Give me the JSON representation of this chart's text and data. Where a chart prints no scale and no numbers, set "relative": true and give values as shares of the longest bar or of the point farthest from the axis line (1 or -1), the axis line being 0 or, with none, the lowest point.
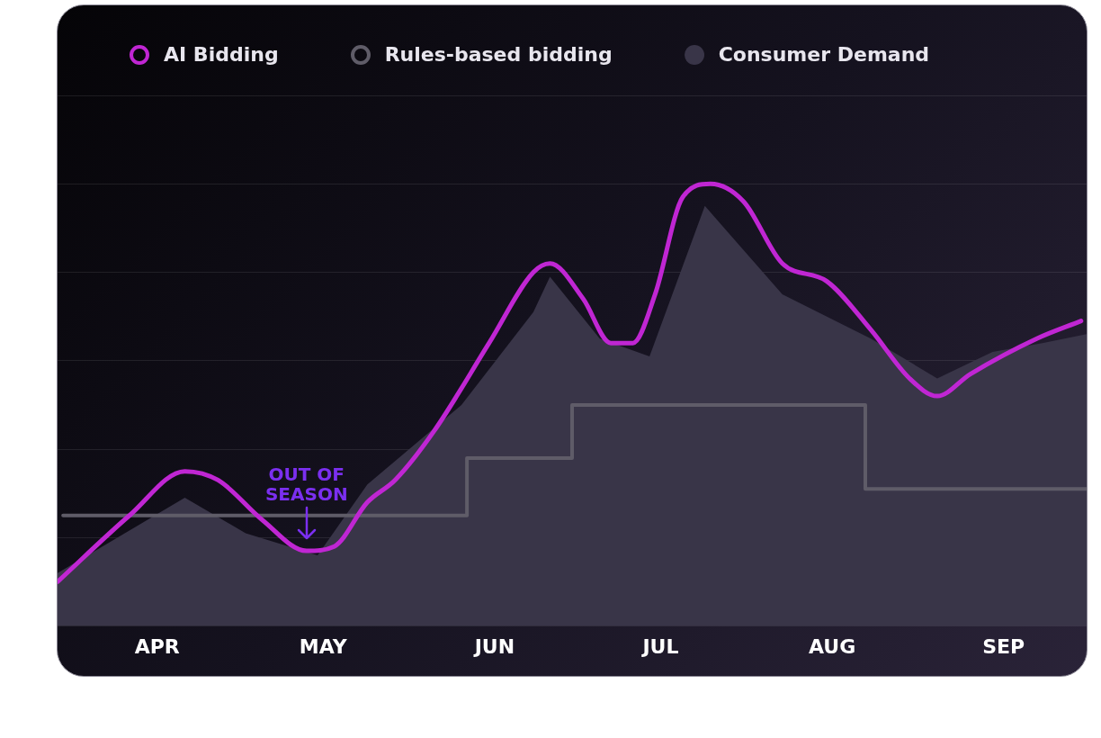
{
  "chart_data": {
    "type": "line",
    "relative": true,
    "grid": "y",
    "legend": "top",
    "marker": "none",
    "line_style": "solid",
    "xlim": [
      "--03-14",
      "--09-16"
    ],
    "xticks": [
      {
        "value": "--04-01",
        "label": "APR"
      },
      {
        "value": "--05-01",
        "label": "MAY"
      },
      {
        "value": "--06-01",
        "label": "JUN"
      },
      {
        "value": "--07-01",
        "label": "JUL"
      },
      {
        "value": "--08-01",
        "label": "AUG"
      },
      {
        "value": "--09-01",
        "label": "SEP"
      }
    ],
    "annotations": [
      {
        "text": "OUT OF SEASON",
        "x": "--04-28",
        "y": 0.17
      }
    ],
    "series": [
      {
        "name": "AI Bidding",
        "color": "#c026d3",
        "x": [
          "--03-14",
          "--03-27",
          "--04-06",
          "--04-12",
          "--04-20",
          "--04-28",
          "--05-03",
          "--05-09",
          "--05-14",
          "--05-21",
          "--05-31",
          "--06-08",
          "--06-11",
          "--06-17",
          "--06-22",
          "--06-26",
          "--06-30",
          "--07-05",
          "--07-10",
          "--07-16",
          "--07-23",
          "--07-31",
          "--08-08",
          "--08-15",
          "--08-20",
          "--08-26",
          "--09-07",
          "--09-15"
        ],
        "values": [
          0.1,
          0.25,
          0.35,
          0.33,
          0.24,
          0.17,
          0.18,
          0.28,
          0.33,
          0.44,
          0.64,
          0.8,
          0.82,
          0.74,
          0.64,
          0.64,
          0.75,
          0.97,
          1.0,
          0.96,
          0.82,
          0.78,
          0.67,
          0.56,
          0.52,
          0.57,
          0.65,
          0.69
        ]
      },
      {
        "name": "Rules-based bidding",
        "type": "step",
        "color": "#5f5c68",
        "x": [
          "--03-15",
          "--05-27",
          "--06-15",
          "--08-07",
          "--09-16"
        ],
        "values": [
          0.25,
          0.38,
          0.5,
          0.31,
          0.31
        ]
      },
      {
        "name": "Consumer Demand",
        "type": "area",
        "color": "#393548",
        "x": [
          "--03-14",
          "--04-06",
          "--04-17",
          "--04-30",
          "--05-09",
          "--05-26",
          "--06-08",
          "--06-11",
          "--06-20",
          "--06-29",
          "--07-09",
          "--07-23",
          "--08-08",
          "--08-20",
          "--08-30",
          "--09-08",
          "--09-16"
        ],
        "values": [
          0.12,
          0.29,
          0.21,
          0.16,
          0.32,
          0.5,
          0.71,
          0.79,
          0.65,
          0.61,
          0.95,
          0.75,
          0.65,
          0.56,
          0.62,
          0.64,
          0.66
        ]
      }
    ]
  }
}
